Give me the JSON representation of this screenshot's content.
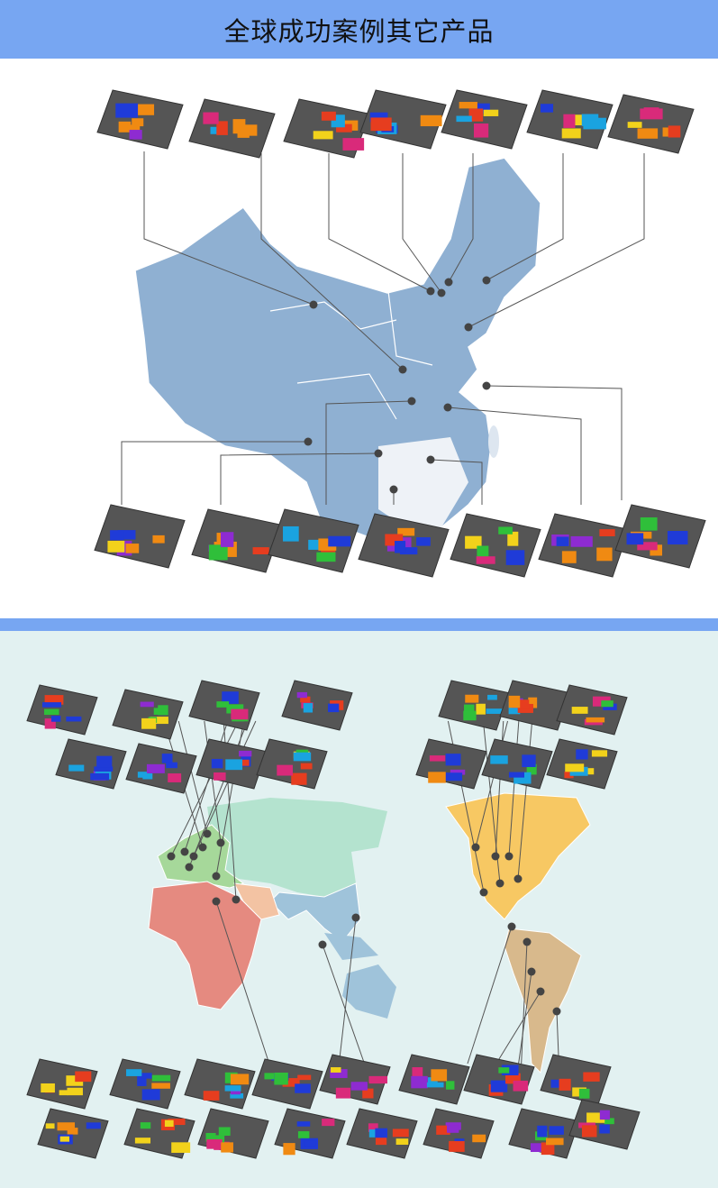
{
  "header": {
    "title": "全球成功案例其它产品"
  },
  "colors": {
    "header": "#77a6f2",
    "china_map": "#8fb0d2",
    "world_background": "#e2f1f1",
    "europe": "#a6d89a",
    "africa": "#e58a80",
    "asia": "#9fc3da",
    "russia": "#b4e3cf",
    "north_america": "#f7c863",
    "south_america": "#d8b98c",
    "oceania": "#9fc3da",
    "leader_line": "#555555",
    "marker": "#444444"
  },
  "sections": [
    {
      "name": "china",
      "case_thumbnails": 14,
      "icon": "trampoline-park-thumbnail"
    },
    {
      "name": "world",
      "case_thumbnails": 32,
      "icon": "trampoline-park-thumbnail"
    }
  ]
}
